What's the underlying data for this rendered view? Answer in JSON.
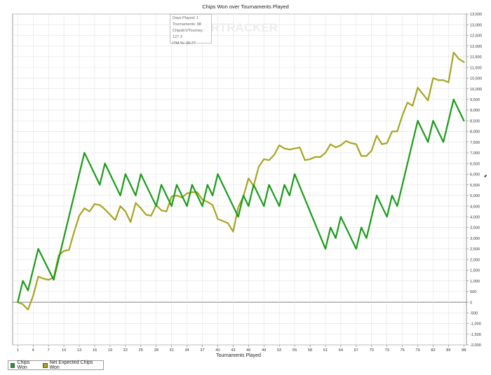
{
  "chart_data": {
    "type": "line",
    "title": "Chips Won over Tournaments Played",
    "xlabel": "Tournaments Played",
    "ylabel": "",
    "x_ticks": [
      1,
      4,
      7,
      10,
      13,
      16,
      19,
      22,
      25,
      28,
      31,
      34,
      37,
      40,
      43,
      46,
      49,
      52,
      55,
      58,
      61,
      64,
      67,
      70,
      73,
      76,
      79,
      82,
      85,
      88
    ],
    "y_ticks": [
      -2000,
      -1500,
      -1000,
      -500,
      0,
      500,
      1000,
      1500,
      2000,
      2500,
      3000,
      3500,
      4000,
      4500,
      5000,
      5500,
      6000,
      6500,
      7000,
      7500,
      8000,
      8500,
      9000,
      9500,
      10000,
      10500,
      11000,
      11500,
      12000,
      12500,
      13000,
      13500
    ],
    "y_tick_labels": [
      "-2,000",
      "-1,500",
      "-1,000",
      "-500",
      "0",
      "500",
      "1,000",
      "1,500",
      "2,000",
      "2,500",
      "3,000",
      "3,500",
      "4,000",
      "4,500",
      "5,000",
      "5,500",
      "6,000",
      "6,500",
      "7,000",
      "7,500",
      "8,000",
      "8,500",
      "9,000",
      "9,500",
      "10,000",
      "10,500",
      "11,000",
      "11,500",
      "12,000",
      "12,500",
      "13,000",
      "13,500"
    ],
    "xlim": [
      0,
      88.5
    ],
    "ylim": [
      -2000,
      13500
    ],
    "grid": true,
    "legend_position": "bottom-left",
    "series": [
      {
        "name": "Chips Won",
        "color": "#1a9c1a",
        "points": [
          [
            1,
            0
          ],
          [
            2,
            1000
          ],
          [
            3,
            550
          ],
          [
            5,
            2500
          ],
          [
            8,
            1050
          ],
          [
            14,
            7000
          ],
          [
            17,
            5500
          ],
          [
            18,
            6500
          ],
          [
            21,
            5000
          ],
          [
            22,
            6000
          ],
          [
            24,
            5000
          ],
          [
            25,
            6000
          ],
          [
            28,
            4500
          ],
          [
            29,
            5500
          ],
          [
            31,
            4500
          ],
          [
            32,
            5500
          ],
          [
            34,
            4500
          ],
          [
            35,
            5500
          ],
          [
            37,
            4500
          ],
          [
            38,
            5500
          ],
          [
            39,
            5000
          ],
          [
            40,
            6000
          ],
          [
            44,
            4000
          ],
          [
            45,
            5000
          ],
          [
            46,
            4500
          ],
          [
            47,
            5500
          ],
          [
            49,
            4500
          ],
          [
            50,
            5500
          ],
          [
            52,
            4500
          ],
          [
            53,
            5500
          ],
          [
            54,
            5000
          ],
          [
            55,
            6000
          ],
          [
            61,
            2500
          ],
          [
            62,
            3500
          ],
          [
            63,
            3000
          ],
          [
            64,
            4000
          ],
          [
            67,
            2500
          ],
          [
            68,
            3500
          ],
          [
            69,
            3000
          ],
          [
            71,
            5000
          ],
          [
            73,
            4000
          ],
          [
            74,
            5000
          ],
          [
            75,
            4500
          ],
          [
            79,
            8500
          ],
          [
            81,
            7500
          ],
          [
            82,
            8500
          ],
          [
            84,
            7500
          ],
          [
            86,
            9500
          ],
          [
            88,
            8500
          ]
        ]
      },
      {
        "name": "Net Expected Chips Won",
        "color": "#a8a422",
        "points": [
          [
            1,
            0
          ],
          [
            2,
            -100
          ],
          [
            3,
            -350
          ],
          [
            4,
            300
          ],
          [
            5,
            1200
          ],
          [
            6,
            1100
          ],
          [
            7,
            1050
          ],
          [
            8,
            1150
          ],
          [
            9,
            2200
          ],
          [
            10,
            2400
          ],
          [
            11,
            2450
          ],
          [
            12,
            3300
          ],
          [
            13,
            4050
          ],
          [
            14,
            4400
          ],
          [
            15,
            4250
          ],
          [
            16,
            4600
          ],
          [
            17,
            4550
          ],
          [
            18,
            4350
          ],
          [
            19,
            4100
          ],
          [
            20,
            3850
          ],
          [
            21,
            4500
          ],
          [
            22,
            4250
          ],
          [
            23,
            3750
          ],
          [
            24,
            4650
          ],
          [
            25,
            4400
          ],
          [
            26,
            4100
          ],
          [
            27,
            4050
          ],
          [
            28,
            4550
          ],
          [
            29,
            4300
          ],
          [
            30,
            4250
          ],
          [
            31,
            4950
          ],
          [
            32,
            5000
          ],
          [
            33,
            4900
          ],
          [
            34,
            5100
          ],
          [
            35,
            5150
          ],
          [
            36,
            5150
          ],
          [
            37,
            4800
          ],
          [
            38,
            4700
          ],
          [
            39,
            4550
          ],
          [
            40,
            3900
          ],
          [
            41,
            3800
          ],
          [
            42,
            3700
          ],
          [
            43,
            3300
          ],
          [
            44,
            4450
          ],
          [
            45,
            4950
          ],
          [
            46,
            5800
          ],
          [
            47,
            5450
          ],
          [
            48,
            6350
          ],
          [
            49,
            6700
          ],
          [
            50,
            6650
          ],
          [
            51,
            6900
          ],
          [
            52,
            7350
          ],
          [
            53,
            7200
          ],
          [
            54,
            7150
          ],
          [
            55,
            7200
          ],
          [
            56,
            7250
          ],
          [
            57,
            6650
          ],
          [
            58,
            6700
          ],
          [
            59,
            6800
          ],
          [
            60,
            6800
          ],
          [
            61,
            7000
          ],
          [
            62,
            7400
          ],
          [
            63,
            7250
          ],
          [
            64,
            7350
          ],
          [
            65,
            7550
          ],
          [
            66,
            7450
          ],
          [
            67,
            7400
          ],
          [
            68,
            6850
          ],
          [
            69,
            6850
          ],
          [
            70,
            7100
          ],
          [
            71,
            7800
          ],
          [
            72,
            7400
          ],
          [
            73,
            7450
          ],
          [
            74,
            8000
          ],
          [
            75,
            8000
          ],
          [
            76,
            8750
          ],
          [
            77,
            9350
          ],
          [
            78,
            9200
          ],
          [
            79,
            10050
          ],
          [
            80,
            9750
          ],
          [
            81,
            9450
          ],
          [
            82,
            10500
          ],
          [
            83,
            10400
          ],
          [
            84,
            10400
          ],
          [
            85,
            10300
          ],
          [
            86,
            11700
          ],
          [
            87,
            11400
          ],
          [
            88,
            11250
          ]
        ]
      }
    ],
    "tooltip_lines": [
      "Days Played: 1",
      "Tournaments: 88",
      "ChipsEV/Tourney: 127.3",
      "ITM %: 39.77"
    ],
    "watermark": "KERTRACKER"
  }
}
